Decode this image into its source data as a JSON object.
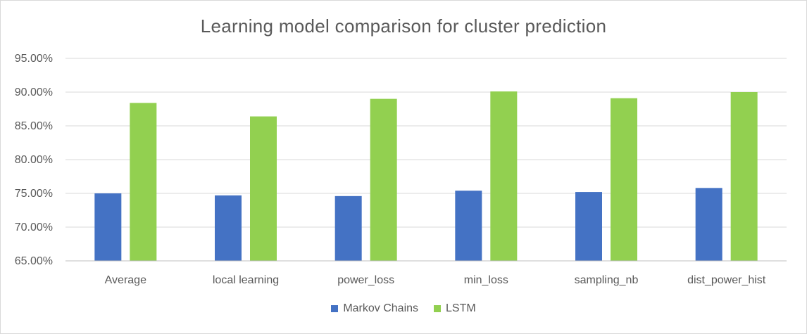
{
  "chart_data": {
    "type": "bar",
    "title": "Learning model comparison for cluster prediction",
    "xlabel": "",
    "ylabel": "",
    "categories": [
      "Average",
      "local learning",
      "power_loss",
      "min_loss",
      "sampling_nb",
      "dist_power_hist"
    ],
    "series": [
      {
        "name": "Markov Chains",
        "color": "#4472c4",
        "values": [
          75.0,
          74.7,
          74.6,
          75.4,
          75.2,
          75.8
        ]
      },
      {
        "name": "LSTM",
        "color": "#92d050",
        "values": [
          88.4,
          86.4,
          89.0,
          90.1,
          89.1,
          90.0
        ]
      }
    ],
    "ylim": [
      65,
      95
    ],
    "yticks": [
      65,
      70,
      75,
      80,
      85,
      90,
      95
    ],
    "ytick_labels": [
      "65.00%",
      "70.00%",
      "75.00%",
      "80.00%",
      "85.00%",
      "90.00%",
      "95.00%"
    ],
    "grid": true,
    "legend_position": "bottom"
  }
}
